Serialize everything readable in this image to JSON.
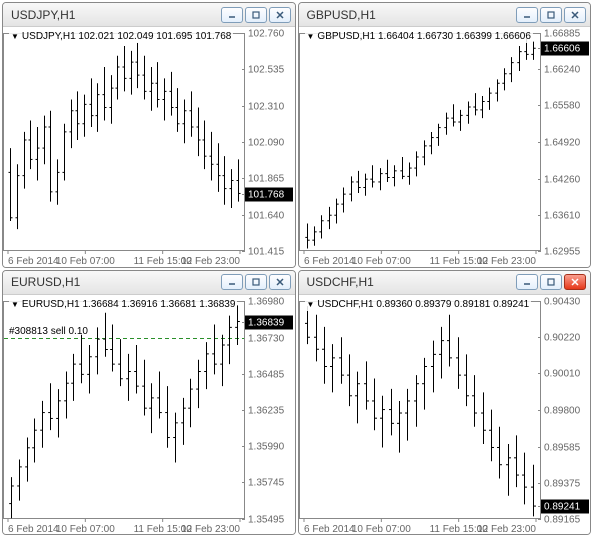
{
  "windows": [
    {
      "id": "usdjpy",
      "title": "USDJPY,H1",
      "header": {
        "symbol": "USDJPY,H1",
        "ohlc": [
          "102.021",
          "102.049",
          "101.695",
          "101.768"
        ]
      },
      "closeActive": false,
      "yAxis": {
        "min": 101.415,
        "max": 102.76,
        "ticks": [
          102.76,
          102.535,
          102.31,
          102.09,
          101.865,
          101.768,
          101.64,
          101.415
        ],
        "decimals": 3,
        "highlightValue": 101.768
      },
      "xAxis": {
        "labels": [
          "6 Feb 2014",
          "10 Feb 07:00",
          "11 Feb 15:00",
          "12 Feb 23:00"
        ]
      },
      "data": [
        [
          101.9,
          102.05,
          101.6,
          101.62
        ],
        [
          101.62,
          101.95,
          101.55,
          101.88
        ],
        [
          101.88,
          102.15,
          101.8,
          102.1
        ],
        [
          102.1,
          102.22,
          101.92,
          101.98
        ],
        [
          101.98,
          102.18,
          101.85,
          102.05
        ],
        [
          102.05,
          102.25,
          101.95,
          102.18
        ],
        [
          102.18,
          102.28,
          101.72,
          101.78
        ],
        [
          101.78,
          101.98,
          101.7,
          101.9
        ],
        [
          101.9,
          102.2,
          101.85,
          102.15
        ],
        [
          102.15,
          102.35,
          102.05,
          102.28
        ],
        [
          102.28,
          102.4,
          102.1,
          102.2
        ],
        [
          102.2,
          102.38,
          102.12,
          102.32
        ],
        [
          102.32,
          102.48,
          102.18,
          102.25
        ],
        [
          102.25,
          102.45,
          102.15,
          102.38
        ],
        [
          102.38,
          102.55,
          102.22,
          102.3
        ],
        [
          102.3,
          102.5,
          102.2,
          102.42
        ],
        [
          102.42,
          102.62,
          102.35,
          102.55
        ],
        [
          102.55,
          102.68,
          102.4,
          102.48
        ],
        [
          102.48,
          102.65,
          102.38,
          102.58
        ],
        [
          102.58,
          102.7,
          102.42,
          102.5
        ],
        [
          102.5,
          102.62,
          102.35,
          102.4
        ],
        [
          102.4,
          102.55,
          102.28,
          102.45
        ],
        [
          102.45,
          102.58,
          102.3,
          102.35
        ],
        [
          102.35,
          102.48,
          102.22,
          102.4
        ],
        [
          102.4,
          102.52,
          102.25,
          102.3
        ],
        [
          102.3,
          102.42,
          102.15,
          102.2
        ],
        [
          102.2,
          102.35,
          102.08,
          102.28
        ],
        [
          102.28,
          102.4,
          102.12,
          102.18
        ],
        [
          102.18,
          102.3,
          102.0,
          102.1
        ],
        [
          102.1,
          102.22,
          101.92,
          102.0
        ],
        [
          102.0,
          102.15,
          101.85,
          101.95
        ],
        [
          101.95,
          102.08,
          101.78,
          101.88
        ],
        [
          101.88,
          102.0,
          101.7,
          101.8
        ],
        [
          101.8,
          101.92,
          101.68,
          101.85
        ],
        [
          101.85,
          101.98,
          101.72,
          101.77
        ]
      ]
    },
    {
      "id": "gbpusd",
      "title": "GBPUSD,H1",
      "header": {
        "symbol": "GBPUSD,H1",
        "ohlc": [
          "1.66404",
          "1.66730",
          "1.66399",
          "1.66606"
        ]
      },
      "closeActive": false,
      "yAxis": {
        "min": 1.62955,
        "max": 1.66885,
        "ticks": [
          1.66885,
          1.66606,
          1.6624,
          1.6558,
          1.6492,
          1.6426,
          1.6361,
          1.62955
        ],
        "decimals": 5,
        "highlightValue": 1.66606
      },
      "xAxis": {
        "labels": [
          "6 Feb 2014",
          "10 Feb 07:00",
          "11 Feb 15:00",
          "12 Feb 23:00"
        ]
      },
      "data": [
        [
          1.632,
          1.6345,
          1.63,
          1.6315
        ],
        [
          1.6315,
          1.634,
          1.6305,
          1.633
        ],
        [
          1.633,
          1.636,
          1.6318,
          1.635
        ],
        [
          1.635,
          1.6375,
          1.6335,
          1.636
        ],
        [
          1.636,
          1.639,
          1.6345,
          1.638
        ],
        [
          1.638,
          1.641,
          1.6365,
          1.6398
        ],
        [
          1.6398,
          1.643,
          1.6385,
          1.642
        ],
        [
          1.642,
          1.644,
          1.64,
          1.641
        ],
        [
          1.641,
          1.6435,
          1.6395,
          1.6425
        ],
        [
          1.6425,
          1.645,
          1.641,
          1.642
        ],
        [
          1.642,
          1.6445,
          1.6405,
          1.6435
        ],
        [
          1.6435,
          1.646,
          1.642,
          1.6428
        ],
        [
          1.6428,
          1.645,
          1.6412,
          1.644
        ],
        [
          1.644,
          1.6465,
          1.6425,
          1.643
        ],
        [
          1.643,
          1.6455,
          1.6415,
          1.6445
        ],
        [
          1.6445,
          1.6475,
          1.643,
          1.6465
        ],
        [
          1.6465,
          1.6495,
          1.645,
          1.6485
        ],
        [
          1.6485,
          1.651,
          1.647,
          1.65
        ],
        [
          1.65,
          1.6525,
          1.6485,
          1.6518
        ],
        [
          1.6518,
          1.6545,
          1.6505,
          1.6535
        ],
        [
          1.6535,
          1.656,
          1.652,
          1.6528
        ],
        [
          1.6528,
          1.655,
          1.6512,
          1.654
        ],
        [
          1.654,
          1.6565,
          1.6525,
          1.6555
        ],
        [
          1.6555,
          1.658,
          1.654,
          1.655
        ],
        [
          1.655,
          1.6575,
          1.6535,
          1.6565
        ],
        [
          1.6565,
          1.659,
          1.655,
          1.658
        ],
        [
          1.658,
          1.6605,
          1.6565,
          1.6598
        ],
        [
          1.6598,
          1.6625,
          1.6585,
          1.6615
        ],
        [
          1.6615,
          1.6645,
          1.66,
          1.6635
        ],
        [
          1.6635,
          1.6665,
          1.662,
          1.6655
        ],
        [
          1.6655,
          1.668,
          1.664,
          1.665
        ],
        [
          1.665,
          1.6673,
          1.664,
          1.6661
        ]
      ]
    },
    {
      "id": "eurusd",
      "title": "EURUSD,H1",
      "header": {
        "symbol": "EURUSD,H1",
        "ohlc": [
          "1.36684",
          "1.36916",
          "1.36681",
          "1.36839"
        ]
      },
      "closeActive": false,
      "yAxis": {
        "min": 1.35495,
        "max": 1.3698,
        "ticks": [
          1.3698,
          1.36839,
          1.3673,
          1.36485,
          1.36235,
          1.3599,
          1.35745,
          1.35495
        ],
        "decimals": 5,
        "highlightValue": 1.36839
      },
      "xAxis": {
        "labels": [
          "6 Feb 2014",
          "10 Feb 07:00",
          "11 Feb 15:00",
          "12 Feb 23:00"
        ]
      },
      "order": {
        "text": "#308813 sell 0.10",
        "price": 1.3673,
        "color": "#2a8f2a",
        "dash": "4,3"
      },
      "data": [
        [
          1.356,
          1.3578,
          1.355,
          1.3572
        ],
        [
          1.3572,
          1.359,
          1.3562,
          1.3585
        ],
        [
          1.3585,
          1.3605,
          1.3575,
          1.3598
        ],
        [
          1.3598,
          1.3618,
          1.3588,
          1.361
        ],
        [
          1.361,
          1.363,
          1.3598,
          1.3622
        ],
        [
          1.3622,
          1.3642,
          1.361,
          1.3618
        ],
        [
          1.3618,
          1.3638,
          1.3605,
          1.363
        ],
        [
          1.363,
          1.365,
          1.3618,
          1.3642
        ],
        [
          1.3642,
          1.3662,
          1.363,
          1.3655
        ],
        [
          1.3655,
          1.3675,
          1.3642,
          1.3648
        ],
        [
          1.3648,
          1.3668,
          1.3635,
          1.366
        ],
        [
          1.366,
          1.368,
          1.3648,
          1.3672
        ],
        [
          1.3672,
          1.369,
          1.366,
          1.3665
        ],
        [
          1.3665,
          1.3682,
          1.365,
          1.3655
        ],
        [
          1.3655,
          1.3672,
          1.364,
          1.3645
        ],
        [
          1.3645,
          1.3662,
          1.363,
          1.365
        ],
        [
          1.365,
          1.3668,
          1.3635,
          1.364
        ],
        [
          1.364,
          1.3658,
          1.362,
          1.3625
        ],
        [
          1.3625,
          1.3642,
          1.3608,
          1.3632
        ],
        [
          1.3632,
          1.365,
          1.3618,
          1.3622
        ],
        [
          1.3622,
          1.364,
          1.3598,
          1.3605
        ],
        [
          1.3605,
          1.3622,
          1.3588,
          1.3615
        ],
        [
          1.3615,
          1.3632,
          1.36,
          1.3625
        ],
        [
          1.3625,
          1.3645,
          1.3612,
          1.3638
        ],
        [
          1.3638,
          1.3658,
          1.3625,
          1.365
        ],
        [
          1.365,
          1.367,
          1.3638,
          1.3662
        ],
        [
          1.3662,
          1.3682,
          1.3648,
          1.3655
        ],
        [
          1.3655,
          1.3675,
          1.364,
          1.3668
        ],
        [
          1.3668,
          1.3688,
          1.3655,
          1.368
        ],
        [
          1.368,
          1.3695,
          1.3668,
          1.3684
        ]
      ]
    },
    {
      "id": "usdchf",
      "title": "USDCHF,H1",
      "header": {
        "symbol": "USDCHF,H1",
        "ohlc": [
          "0.89360",
          "0.89379",
          "0.89181",
          "0.89241"
        ]
      },
      "closeActive": true,
      "yAxis": {
        "min": 0.89165,
        "max": 0.9043,
        "ticks": [
          0.9043,
          0.9022,
          0.9001,
          0.898,
          0.89585,
          0.89375,
          0.89241,
          0.89165
        ],
        "decimals": 5,
        "highlightValue": 0.89241
      },
      "xAxis": {
        "labels": [
          "6 Feb 2014",
          "10 Feb 07:00",
          "11 Feb 15:00",
          "12 Feb 23:00"
        ]
      },
      "data": [
        [
          0.903,
          0.904,
          0.9018,
          0.9022
        ],
        [
          0.9022,
          0.9035,
          0.9008,
          0.9015
        ],
        [
          0.9015,
          0.9028,
          0.8995,
          0.9005
        ],
        [
          0.9005,
          0.9018,
          0.899,
          0.901
        ],
        [
          0.901,
          0.9022,
          0.8995,
          0.9
        ],
        [
          0.9,
          0.9012,
          0.8982,
          0.8988
        ],
        [
          0.8988,
          0.9002,
          0.8972,
          0.8995
        ],
        [
          0.8995,
          0.9008,
          0.898,
          0.8985
        ],
        [
          0.8985,
          0.8998,
          0.8968,
          0.8975
        ],
        [
          0.8975,
          0.8988,
          0.8958,
          0.898
        ],
        [
          0.898,
          0.8992,
          0.8965,
          0.8972
        ],
        [
          0.8972,
          0.8985,
          0.8955,
          0.8978
        ],
        [
          0.8978,
          0.8992,
          0.8962,
          0.8985
        ],
        [
          0.8985,
          0.9,
          0.897,
          0.8995
        ],
        [
          0.8995,
          0.901,
          0.898,
          0.9005
        ],
        [
          0.9005,
          0.902,
          0.899,
          0.9012
        ],
        [
          0.9012,
          0.9028,
          0.8998,
          0.902
        ],
        [
          0.902,
          0.9035,
          0.9005,
          0.901
        ],
        [
          0.901,
          0.9022,
          0.8992,
          0.9
        ],
        [
          0.9,
          0.9012,
          0.8982,
          0.8988
        ],
        [
          0.8988,
          0.9,
          0.897,
          0.8978
        ],
        [
          0.8978,
          0.899,
          0.896,
          0.8968
        ],
        [
          0.8968,
          0.898,
          0.895,
          0.8958
        ],
        [
          0.8958,
          0.897,
          0.894,
          0.8948
        ],
        [
          0.8948,
          0.896,
          0.893,
          0.8952
        ],
        [
          0.8952,
          0.8965,
          0.8935,
          0.8942
        ],
        [
          0.8942,
          0.8955,
          0.8925,
          0.8935
        ],
        [
          0.8935,
          0.8948,
          0.8918,
          0.8924
        ]
      ]
    }
  ],
  "chartStyle": {
    "barColor": "#000000",
    "gridColor": "#e8e8e8",
    "axisColor": "#888888",
    "textColor": "#666666"
  },
  "layout": {
    "rightAxisWidth": 50,
    "bottomAxisHeight": 16,
    "padTop": 6
  }
}
